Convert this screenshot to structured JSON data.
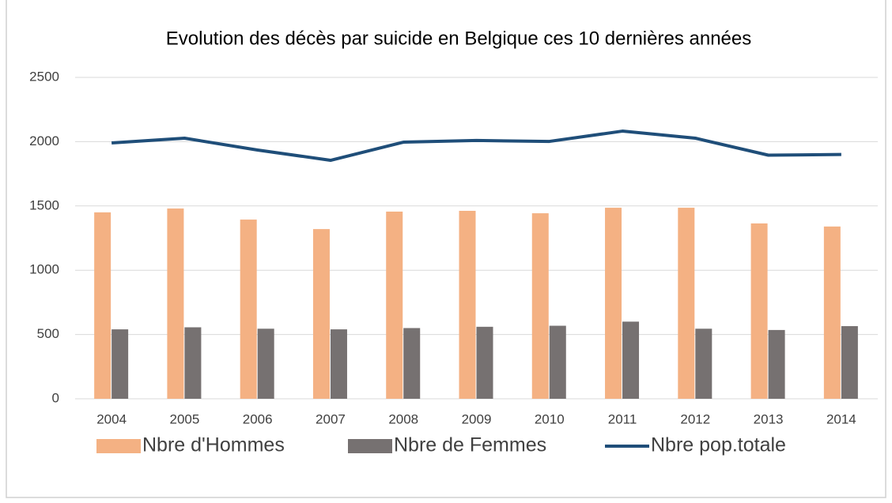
{
  "chart_data": {
    "type": "bar_line",
    "title": "Evolution des décès par suicide en Belgique ces 10 dernières années",
    "categories": [
      "2004",
      "2005",
      "2006",
      "2007",
      "2008",
      "2009",
      "2010",
      "2011",
      "2012",
      "2013",
      "2014"
    ],
    "series": [
      {
        "name": "Nbre d'Hommes",
        "type": "bar",
        "color": "#f4b183",
        "values": [
          1450,
          1480,
          1394,
          1320,
          1456,
          1462,
          1443,
          1486,
          1486,
          1364,
          1340
        ]
      },
      {
        "name": "Nbre de Femmes",
        "type": "bar",
        "color": "#767171",
        "values": [
          540,
          556,
          545,
          540,
          550,
          560,
          568,
          600,
          545,
          535,
          565
        ]
      },
      {
        "name": "Nbre pop.totale",
        "type": "line",
        "color": "#1f4e79",
        "values": [
          1990,
          2027,
          1935,
          1855,
          1996,
          2009,
          2002,
          2082,
          2027,
          1895,
          1900
        ]
      }
    ],
    "ylim": [
      0,
      2500
    ],
    "yticks": [
      0,
      500,
      1000,
      1500,
      2000,
      2500
    ],
    "grid": true,
    "legend": "bottom"
  }
}
